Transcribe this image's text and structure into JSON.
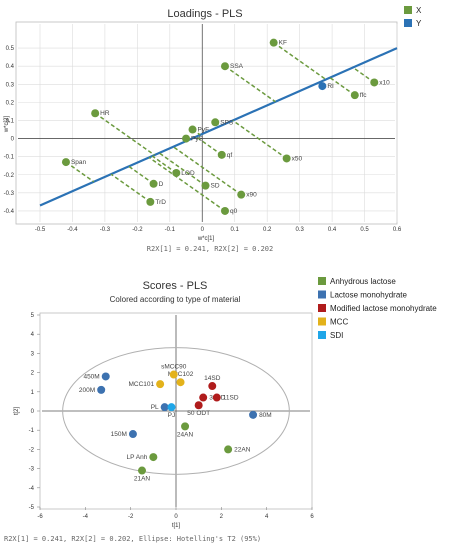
{
  "chart_data": [
    {
      "type": "scatter",
      "title": "Loadings - PLS",
      "xlabel": "w*c[1]",
      "ylabel": "w*c[2]",
      "xlim": [
        -0.5,
        0.6
      ],
      "ylim": [
        -0.45,
        0.6
      ],
      "xticks": [
        "-0.5",
        "-0.4",
        "-0.3",
        "-0.2",
        "-0.1",
        "0",
        "0.1",
        "0.2",
        "0.3",
        "0.4",
        "0.5",
        "0.6"
      ],
      "yticks": [
        "0.5",
        "0.4",
        "0.3",
        "0.2",
        "0.1",
        "0",
        "-0.1",
        "-0.2",
        "-0.3",
        "-0.4"
      ],
      "grid": true,
      "legend": [
        {
          "name": "X",
          "color": "#6b9a3e"
        },
        {
          "name": "Y",
          "color": "#2b72b5"
        }
      ],
      "regression_line": {
        "from": [
          -0.5,
          -0.37
        ],
        "to": [
          0.6,
          0.5
        ],
        "color": "#2b72b5"
      },
      "points": [
        {
          "label": "KF",
          "x": 0.22,
          "y": 0.53,
          "group": "X"
        },
        {
          "label": "SSA",
          "x": 0.07,
          "y": 0.4,
          "group": "X"
        },
        {
          "label": "x10",
          "x": 0.53,
          "y": 0.31,
          "group": "X"
        },
        {
          "label": "ffc",
          "x": 0.47,
          "y": 0.24,
          "group": "X"
        },
        {
          "label": "RI",
          "x": 0.37,
          "y": 0.29,
          "group": "Y"
        },
        {
          "label": "HR",
          "x": -0.33,
          "y": 0.14,
          "group": "X"
        },
        {
          "label": "PyF",
          "x": -0.03,
          "y": 0.05,
          "group": "X"
        },
        {
          "label": "SPS",
          "x": 0.04,
          "y": 0.09,
          "group": "X"
        },
        {
          "label": "PyS",
          "x": -0.05,
          "y": 0.0,
          "group": "X"
        },
        {
          "label": "qf",
          "x": 0.06,
          "y": -0.09,
          "group": "X"
        },
        {
          "label": "x50",
          "x": 0.26,
          "y": -0.11,
          "group": "X"
        },
        {
          "label": "Span",
          "x": -0.42,
          "y": -0.13,
          "group": "X"
        },
        {
          "label": "LOD",
          "x": -0.08,
          "y": -0.19,
          "group": "X"
        },
        {
          "label": "D",
          "x": -0.15,
          "y": -0.25,
          "group": "X"
        },
        {
          "label": "SD",
          "x": 0.01,
          "y": -0.26,
          "group": "X"
        },
        {
          "label": "TrD",
          "x": -0.16,
          "y": -0.35,
          "group": "X"
        },
        {
          "label": "x90",
          "x": 0.12,
          "y": -0.31,
          "group": "X"
        },
        {
          "label": "q0",
          "x": 0.07,
          "y": -0.4,
          "group": "X"
        }
      ],
      "footer": "R2X[1] = 0.241, R2X[2] = 0.202"
    },
    {
      "type": "scatter",
      "title": "Scores - PLS",
      "subtitle": "Colored according to type of material",
      "xlabel": "t[1]",
      "ylabel": "t[2]",
      "xlim": [
        -6,
        6
      ],
      "ylim": [
        -5,
        5
      ],
      "xticks": [
        "-6",
        "-4",
        "-2",
        "0",
        "2",
        "4",
        "6"
      ],
      "yticks": [
        "5",
        "4",
        "3",
        "2",
        "1",
        "0",
        "-1",
        "-2",
        "-3",
        "-4",
        "-5"
      ],
      "grid": false,
      "ellipse": {
        "rx": 5.0,
        "ry": 3.3
      },
      "legend": [
        {
          "name": "Anhydrous lactose",
          "color": "#6b9a3e"
        },
        {
          "name": "Lactose monohydrate",
          "color": "#3d72b0"
        },
        {
          "name": "Modified lactose monohydrate",
          "color": "#b01c1c"
        },
        {
          "name": "MCC",
          "color": "#e3b21b"
        },
        {
          "name": "SDI",
          "color": "#1fa6e8"
        }
      ],
      "points": [
        {
          "label": "450M",
          "x": -3.1,
          "y": 1.8,
          "group": "Lactose monohydrate"
        },
        {
          "label": "200M",
          "x": -3.3,
          "y": 1.1,
          "group": "Lactose monohydrate"
        },
        {
          "label": "80M",
          "x": 3.4,
          "y": -0.2,
          "group": "Lactose monohydrate"
        },
        {
          "label": "150M",
          "x": -1.9,
          "y": -1.2,
          "group": "Lactose monohydrate"
        },
        {
          "label": "PL",
          "x": -0.5,
          "y": 0.2,
          "group": "Lactose monohydrate"
        },
        {
          "label": "MCC101",
          "x": -0.7,
          "y": 1.4,
          "group": "MCC"
        },
        {
          "label": "MCC102",
          "x": 0.2,
          "y": 1.5,
          "group": "MCC"
        },
        {
          "label": "sMCC90",
          "x": -0.1,
          "y": 1.9,
          "group": "MCC"
        },
        {
          "label": "PJ",
          "x": -0.2,
          "y": 0.2,
          "group": "SDI"
        },
        {
          "label": "14SD",
          "x": 1.6,
          "y": 1.3,
          "group": "Modified lactose monohydrate"
        },
        {
          "label": "30SD",
          "x": 1.2,
          "y": 0.7,
          "group": "Modified lactose monohydrate"
        },
        {
          "label": "11SD",
          "x": 1.8,
          "y": 0.7,
          "group": "Modified lactose monohydrate"
        },
        {
          "label": "50 ODT",
          "x": 1.0,
          "y": 0.3,
          "group": "Modified lactose monohydrate"
        },
        {
          "label": "24AN",
          "x": 0.4,
          "y": -0.8,
          "group": "Anhydrous lactose"
        },
        {
          "label": "22AN",
          "x": 2.3,
          "y": -2.0,
          "group": "Anhydrous lactose"
        },
        {
          "label": "LP Anh",
          "x": -1.0,
          "y": -2.4,
          "group": "Anhydrous lactose"
        },
        {
          "label": "21AN",
          "x": -1.5,
          "y": -3.1,
          "group": "Anhydrous lactose"
        }
      ],
      "footer": "R2X[1] = 0.241, R2X[2] = 0.202, Ellipse: Hotelling's T2 (95%)"
    }
  ]
}
